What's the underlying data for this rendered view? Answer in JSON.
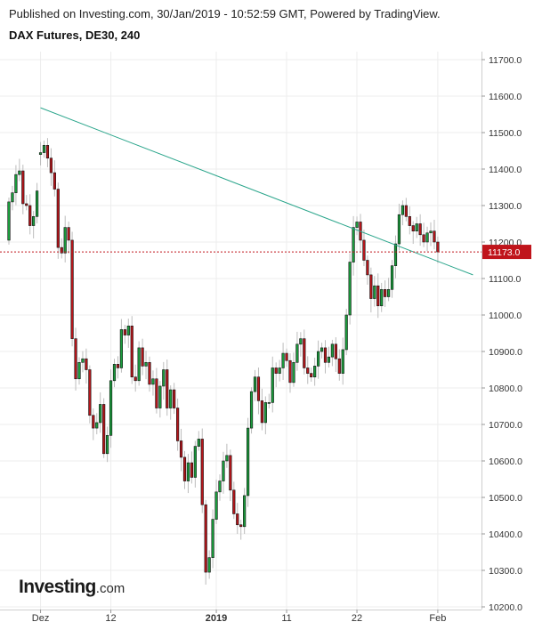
{
  "header": {
    "published": "Published on Investing.com, 30/Jan/2019 - 10:52:59 GMT, Powered by TradingView.",
    "title": "DAX Futures, DE30, 240"
  },
  "logo": {
    "main": "Investing",
    "suffix": ".com"
  },
  "colors": {
    "up_fill": "#1a9c3c",
    "down_fill": "#b5161b",
    "wick": "#bcbcbc",
    "trendline": "#2aa58b",
    "price_line": "#c0141b",
    "price_label_bg": "#c0141b",
    "grid": "#ededed"
  },
  "chart_data": {
    "type": "candlestick",
    "symbol": "DAX Futures, DE30, 240",
    "ylim": [
      10200,
      11700
    ],
    "y_ticks": [
      "11700.0",
      "11600.0",
      "11500.0",
      "11400.0",
      "11300.0",
      "11200.0",
      "11100.0",
      "11000.0",
      "10900.0",
      "10800.0",
      "10700.0",
      "10600.0",
      "10500.0",
      "10400.0",
      "10300.0",
      "10200.0"
    ],
    "x_ticks": [
      {
        "label": "Dez",
        "bar": 9,
        "bold": false
      },
      {
        "label": "12",
        "bar": 29,
        "bold": false
      },
      {
        "label": "2019",
        "bar": 59,
        "bold": true
      },
      {
        "label": "11",
        "bar": 79,
        "bold": false
      },
      {
        "label": "22",
        "bar": 99,
        "bold": false
      },
      {
        "label": "Feb",
        "bar": 122,
        "bold": false
      }
    ],
    "last_price": 11173.0,
    "last_price_label": "11173.0",
    "trendline": {
      "from": {
        "bar": 9,
        "price": 11568
      },
      "to": {
        "bar": 132,
        "price": 11110
      }
    },
    "closes": [
      11310,
      11335,
      11385,
      11395,
      11305,
      11300,
      11245,
      11270,
      11340,
      11445,
      11465,
      11430,
      11390,
      11345,
      11185,
      11170,
      11240,
      11205,
      10935,
      10825,
      10870,
      10880,
      10850,
      10725,
      10690,
      10705,
      10755,
      10620,
      10670,
      10820,
      10865,
      10855,
      10960,
      10945,
      10970,
      10830,
      10820,
      10910,
      10860,
      10870,
      10810,
      10825,
      10745,
      10805,
      10850,
      10745,
      10795,
      10745,
      10655,
      10610,
      10545,
      10595,
      10555,
      10640,
      10660,
      10480,
      10295,
      10335,
      10440,
      10515,
      10545,
      10600,
      10615,
      10520,
      10455,
      10425,
      10420,
      10505,
      10690,
      10790,
      10830,
      10765,
      10705,
      10760,
      10760,
      10855,
      10840,
      10855,
      10895,
      10875,
      10815,
      10870,
      10920,
      10935,
      10855,
      10840,
      10830,
      10860,
      10900,
      10910,
      10870,
      10885,
      10920,
      10880,
      10840,
      10905,
      11000,
      11145,
      11240,
      11255,
      11205,
      11150,
      11110,
      11045,
      11080,
      11025,
      11070,
      11050,
      11070,
      11135,
      11195,
      11275,
      11300,
      11270,
      11245,
      11230,
      11250,
      11220,
      11200,
      11225,
      11230,
      11200,
      11173
    ],
    "opens": [
      11205,
      11310,
      11335,
      11385,
      11395,
      11305,
      11300,
      11245,
      11270,
      11440,
      11445,
      11465,
      11430,
      11390,
      11345,
      11185,
      11170,
      11240,
      11205,
      10935,
      10825,
      10870,
      10880,
      10850,
      10725,
      10690,
      10705,
      10755,
      10620,
      10670,
      10820,
      10865,
      10855,
      10960,
      10945,
      10970,
      10830,
      10820,
      10910,
      10860,
      10870,
      10810,
      10825,
      10745,
      10805,
      10850,
      10745,
      10795,
      10745,
      10655,
      10610,
      10545,
      10595,
      10555,
      10640,
      10660,
      10480,
      10295,
      10335,
      10440,
      10515,
      10545,
      10600,
      10615,
      10520,
      10455,
      10425,
      10420,
      10505,
      10690,
      10790,
      10830,
      10765,
      10705,
      10760,
      10760,
      10855,
      10840,
      10855,
      10895,
      10875,
      10815,
      10870,
      10920,
      10935,
      10855,
      10840,
      10830,
      10860,
      10900,
      10910,
      10870,
      10885,
      10920,
      10880,
      10840,
      10905,
      11000,
      11145,
      11240,
      11255,
      11205,
      11150,
      11110,
      11045,
      11080,
      11025,
      11070,
      11050,
      11070,
      11135,
      11195,
      11275,
      11300,
      11270,
      11245,
      11230,
      11250,
      11220,
      11200,
      11225,
      11230,
      11200
    ]
  }
}
